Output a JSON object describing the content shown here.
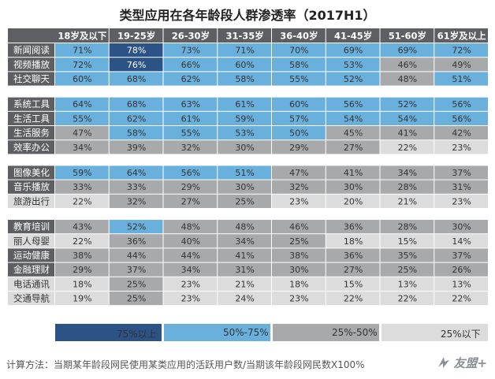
{
  "title": "类型应用在各年龄段人群渗透率（2017H1）",
  "chart_data": {
    "type": "heatmap",
    "title": "类型应用在各年龄段人群渗透率（2017H1）",
    "columns": [
      "18岁及以下",
      "19-25岁",
      "26-30岁",
      "31-35岁",
      "36-40岁",
      "41-45岁",
      "51-60岁",
      "61岁及以上"
    ],
    "groups": [
      {
        "rows": [
          {
            "label": "新闻阅读",
            "values": [
              "71%",
              "78%",
              "73%",
              "71%",
              "70%",
              "69%",
              "69%",
              "72%"
            ]
          },
          {
            "label": "视频播放",
            "values": [
              "72%",
              "76%",
              "66%",
              "60%",
              "58%",
              "53%",
              "46%",
              "49%"
            ]
          },
          {
            "label": "社交聊天",
            "values": [
              "60%",
              "68%",
              "62%",
              "58%",
              "55%",
              "52%",
              "48%",
              "51%"
            ]
          }
        ]
      },
      {
        "rows": [
          {
            "label": "系统工具",
            "values": [
              "64%",
              "68%",
              "63%",
              "61%",
              "60%",
              "56%",
              "52%",
              "56%"
            ]
          },
          {
            "label": "生活工具",
            "values": [
              "55%",
              "62%",
              "61%",
              "59%",
              "57%",
              "54%",
              "54%",
              "56%"
            ]
          },
          {
            "label": "生活服务",
            "values": [
              "47%",
              "58%",
              "55%",
              "53%",
              "50%",
              "45%",
              "41%",
              "42%"
            ]
          },
          {
            "label": "效率办公",
            "values": [
              "34%",
              "39%",
              "32%",
              "30%",
              "29%",
              "27%",
              "22%",
              "23%"
            ]
          }
        ]
      },
      {
        "rows": [
          {
            "label": "图像美化",
            "values": [
              "59%",
              "64%",
              "56%",
              "51%",
              "47%",
              "41%",
              "34%",
              "37%"
            ]
          },
          {
            "label": "音乐播放",
            "values": [
              "33%",
              "33%",
              "29%",
              "30%",
              "32%",
              "30%",
              "28%",
              "31%"
            ]
          },
          {
            "label": "旅游出行",
            "values": [
              "22%",
              "32%",
              "27%",
              "25%",
              "23%",
              "20%",
              "21%",
              "23%"
            ]
          }
        ]
      },
      {
        "rows": [
          {
            "label": "教育培训",
            "values": [
              "43%",
              "52%",
              "48%",
              "48%",
              "46%",
              "36%",
              "28%",
              "30%"
            ]
          },
          {
            "label": "丽人母婴",
            "values": [
              "22%",
              "36%",
              "40%",
              "34%",
              "25%",
              "18%",
              "15%",
              "14%"
            ]
          },
          {
            "label": "运动健康",
            "values": [
              "38%",
              "44%",
              "44%",
              "41%",
              "38%",
              "36%",
              "35%",
              "37%"
            ]
          },
          {
            "label": "金融理财",
            "values": [
              "29%",
              "37%",
              "34%",
              "31%",
              "30%",
              "27%",
              "25%",
              "26%"
            ]
          },
          {
            "label": "电话通讯",
            "values": [
              "18%",
              "25%",
              "23%",
              "21%",
              "18%",
              "15%",
              "13%",
              "13%"
            ]
          },
          {
            "label": "交通导航",
            "values": [
              "19%",
              "25%",
              "23%",
              "24%",
              "23%",
              "22%",
              "22%",
              "22%"
            ]
          }
        ]
      }
    ],
    "legend": [
      {
        "label": "75%以上",
        "color": "#2c5386"
      },
      {
        "label": "50%-75%",
        "color": "#6ab0dc"
      },
      {
        "label": "25%-50%",
        "color": "#a8a9ab"
      },
      {
        "label": "25%以下",
        "color": "#dcdcdc"
      }
    ]
  },
  "colors": {
    "header_bg": "#5d5f63",
    "header_text": "#ffffff",
    "label_dark_bg": "#5d5f63",
    "label_light_bg": "#dcdcdc",
    "label_light_text": "#333333",
    "cell_text_dark": "#ffffff",
    "cell_text_light": "#333333",
    "grid": "#ffffff"
  },
  "footer": {
    "note": "计算方法：当期某年龄段网民使用某类应用的活跃用户数/当期该年龄段网民数X100%",
    "brand": "友盟+"
  }
}
